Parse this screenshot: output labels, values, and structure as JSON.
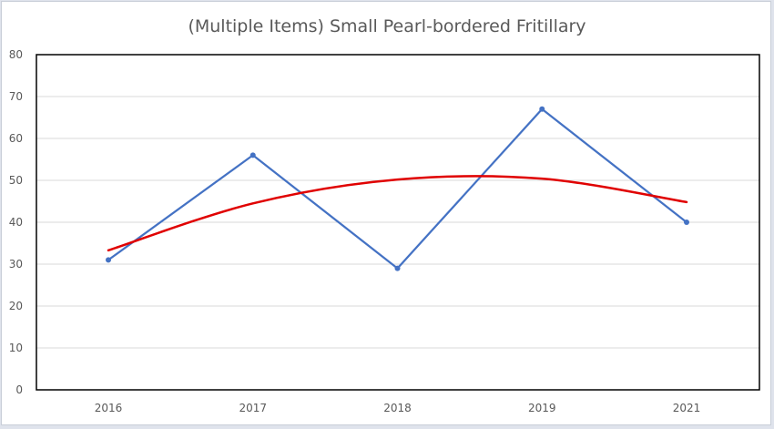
{
  "chart_data": {
    "type": "line",
    "title": "(Multiple Items) Small Pearl-bordered Fritillary",
    "categories": [
      "2016",
      "2017",
      "2018",
      "2019",
      "2021"
    ],
    "series": [
      {
        "values": [
          31,
          56,
          29,
          67,
          40
        ],
        "color": "#4472c4",
        "markers": true
      },
      {
        "values": [
          33.3,
          44.5,
          50.2,
          50.4,
          44.8
        ],
        "color": "#e00000",
        "smooth": true
      }
    ],
    "ylim": [
      0,
      80
    ],
    "yticks": [
      0,
      10,
      20,
      30,
      40,
      50,
      60,
      70,
      80
    ],
    "grid": true,
    "legend": "none"
  }
}
